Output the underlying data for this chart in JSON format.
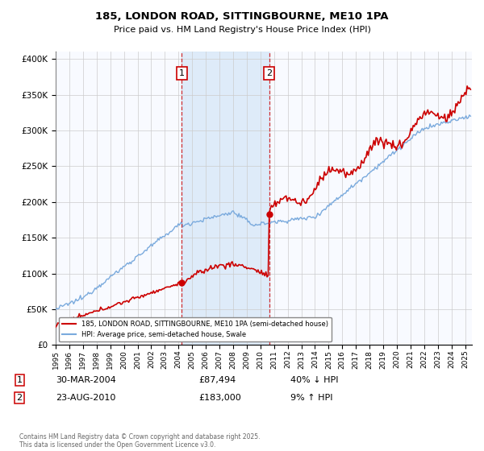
{
  "title": "185, LONDON ROAD, SITTINGBOURNE, ME10 1PA",
  "subtitle": "Price paid vs. HM Land Registry's House Price Index (HPI)",
  "ytick_values": [
    0,
    50000,
    100000,
    150000,
    200000,
    250000,
    300000,
    350000,
    400000
  ],
  "ylim": [
    0,
    410000
  ],
  "xlim_start": 1995.0,
  "xlim_end": 2025.5,
  "red_color": "#cc0000",
  "blue_color": "#7aaadd",
  "blue_fill": "#ddeeff",
  "shade_color": "#d8e8f8",
  "marker1_x": 2004.24,
  "marker1_y": 87494,
  "marker2_x": 2010.65,
  "marker2_y": 183000,
  "legend_line1": "185, LONDON ROAD, SITTINGBOURNE, ME10 1PA (semi-detached house)",
  "legend_line2": "HPI: Average price, semi-detached house, Swale",
  "footer": "Contains HM Land Registry data © Crown copyright and database right 2025.\nThis data is licensed under the Open Government Licence v3.0.",
  "background_color": "#ffffff",
  "plot_bg_color": "#f8faff",
  "grid_color": "#cccccc"
}
